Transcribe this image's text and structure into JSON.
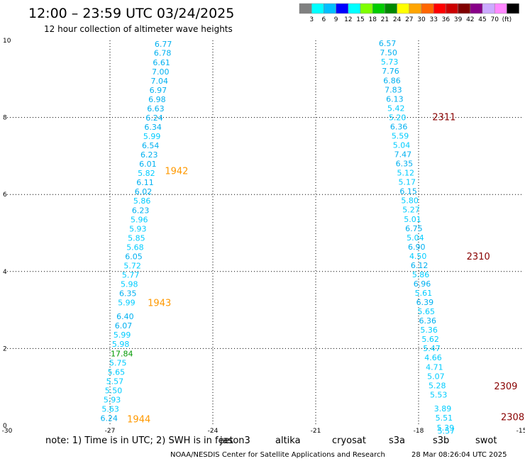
{
  "chart_data": {
    "type": "scatter",
    "title": "12:00 – 23:59 UTC 03/24/2025",
    "subtitle": "12 hour collection of altimeter wave heights",
    "xlim": [
      -30,
      -15
    ],
    "ylim": [
      0,
      10
    ],
    "x_ticks": [
      -30,
      -27,
      -24,
      -21,
      -18,
      -15
    ],
    "x_tick_labels": [
      "-30",
      "-27",
      "-24",
      "-21",
      "-18",
      "-15"
    ],
    "y_ticks": [
      0,
      2,
      4,
      6,
      8,
      10
    ],
    "y_tick_labels": [
      "0",
      "2",
      "4",
      "6",
      "8",
      "10"
    ],
    "grid": "dotted",
    "legend": {
      "placement": "top-right",
      "colors": [
        "#808080",
        "#00ffff",
        "#00bfff",
        "#0000ff",
        "#00ffff",
        "#7fff00",
        "#00cc00",
        "#008800",
        "#ffff00",
        "#ffa500",
        "#ff6600",
        "#ff0000",
        "#cc0000",
        "#800000",
        "#880088",
        "#ccaaff",
        "#ff88ff",
        "#000000"
      ],
      "labels": [
        "3",
        "6",
        "9",
        "12",
        "15",
        "18",
        "21",
        "24",
        "27",
        "30",
        "33",
        "36",
        "39",
        "42",
        "45",
        "70",
        "(ft)"
      ],
      "unit": "(ft)"
    },
    "series": [
      {
        "name": "track-left",
        "points": [
          {
            "x": -25.7,
            "y": 9.83,
            "v": "6.77"
          },
          {
            "x": -25.72,
            "y": 9.6,
            "v": "6.78"
          },
          {
            "x": -25.75,
            "y": 9.36,
            "v": "6.61"
          },
          {
            "x": -25.78,
            "y": 9.12,
            "v": "7.00"
          },
          {
            "x": -25.81,
            "y": 8.88,
            "v": "7.04"
          },
          {
            "x": -25.85,
            "y": 8.64,
            "v": "6.97"
          },
          {
            "x": -25.88,
            "y": 8.4,
            "v": "6.98"
          },
          {
            "x": -25.92,
            "y": 8.16,
            "v": "6.63"
          },
          {
            "x": -25.96,
            "y": 7.92,
            "v": "6.24"
          },
          {
            "x": -26.0,
            "y": 7.68,
            "v": "6.34"
          },
          {
            "x": -26.03,
            "y": 7.44,
            "v": "5.99"
          },
          {
            "x": -26.07,
            "y": 7.2,
            "v": "6.54"
          },
          {
            "x": -26.11,
            "y": 6.96,
            "v": "6.23"
          },
          {
            "x": -26.15,
            "y": 6.72,
            "v": "6.01"
          },
          {
            "x": -26.19,
            "y": 6.48,
            "v": "5.82"
          },
          {
            "x": -26.23,
            "y": 6.24,
            "v": "6.11"
          },
          {
            "x": -26.28,
            "y": 6.0,
            "v": "6.02"
          },
          {
            "x": -26.32,
            "y": 5.76,
            "v": "5.86"
          },
          {
            "x": -26.36,
            "y": 5.52,
            "v": "6.23"
          },
          {
            "x": -26.4,
            "y": 5.28,
            "v": "5.96"
          },
          {
            "x": -26.44,
            "y": 5.04,
            "v": "5.93"
          },
          {
            "x": -26.48,
            "y": 4.8,
            "v": "5.85"
          },
          {
            "x": -26.52,
            "y": 4.56,
            "v": "5.68"
          },
          {
            "x": -26.56,
            "y": 4.32,
            "v": "6.05"
          },
          {
            "x": -26.6,
            "y": 4.08,
            "v": "5.72"
          },
          {
            "x": -26.65,
            "y": 3.84,
            "v": "5.77"
          },
          {
            "x": -26.69,
            "y": 3.6,
            "v": "5.98"
          },
          {
            "x": -26.73,
            "y": 3.36,
            "v": "6.35"
          },
          {
            "x": -26.77,
            "y": 3.12,
            "v": "5.99"
          },
          {
            "x": -26.81,
            "y": 2.76,
            "v": "6.40"
          },
          {
            "x": -26.86,
            "y": 2.52,
            "v": "6.07"
          },
          {
            "x": -26.9,
            "y": 2.28,
            "v": "5.99"
          },
          {
            "x": -26.94,
            "y": 2.04,
            "v": "5.98"
          },
          {
            "x": -26.98,
            "y": 1.8,
            "v": "17.84"
          },
          {
            "x": -27.02,
            "y": 1.56,
            "v": "5.75"
          },
          {
            "x": -27.07,
            "y": 1.32,
            "v": "5.65"
          },
          {
            "x": -27.11,
            "y": 1.08,
            "v": "5.57"
          },
          {
            "x": -27.15,
            "y": 0.84,
            "v": "5.50"
          },
          {
            "x": -27.19,
            "y": 0.6,
            "v": "5.93"
          },
          {
            "x": -27.24,
            "y": 0.36,
            "v": "5.63"
          },
          {
            "x": -27.28,
            "y": 0.12,
            "v": "6.24"
          }
        ]
      },
      {
        "name": "track-right",
        "points": [
          {
            "x": -19.16,
            "y": 9.85,
            "v": "6.57"
          },
          {
            "x": -19.13,
            "y": 9.61,
            "v": "7.50"
          },
          {
            "x": -19.1,
            "y": 9.37,
            "v": "5.73"
          },
          {
            "x": -19.07,
            "y": 9.13,
            "v": "7.76"
          },
          {
            "x": -19.03,
            "y": 8.89,
            "v": "6.86"
          },
          {
            "x": -18.99,
            "y": 8.65,
            "v": "7.83"
          },
          {
            "x": -18.95,
            "y": 8.41,
            "v": "6.13"
          },
          {
            "x": -18.91,
            "y": 8.17,
            "v": "5.42"
          },
          {
            "x": -18.87,
            "y": 7.93,
            "v": "5.20"
          },
          {
            "x": -18.83,
            "y": 7.69,
            "v": "6.36"
          },
          {
            "x": -18.79,
            "y": 7.45,
            "v": "5.59"
          },
          {
            "x": -18.75,
            "y": 7.21,
            "v": "5.04"
          },
          {
            "x": -18.71,
            "y": 6.97,
            "v": "7.47"
          },
          {
            "x": -18.67,
            "y": 6.73,
            "v": "6.35"
          },
          {
            "x": -18.63,
            "y": 6.49,
            "v": "5.12"
          },
          {
            "x": -18.59,
            "y": 6.25,
            "v": "5.17"
          },
          {
            "x": -18.55,
            "y": 6.01,
            "v": "6.15"
          },
          {
            "x": -18.51,
            "y": 5.77,
            "v": "5.80"
          },
          {
            "x": -18.47,
            "y": 5.53,
            "v": "5.27"
          },
          {
            "x": -18.43,
            "y": 5.29,
            "v": "5.01"
          },
          {
            "x": -18.39,
            "y": 5.05,
            "v": "6.75"
          },
          {
            "x": -18.35,
            "y": 4.81,
            "v": "5.04"
          },
          {
            "x": -18.31,
            "y": 4.57,
            "v": "6.90"
          },
          {
            "x": -18.27,
            "y": 4.33,
            "v": "4.50"
          },
          {
            "x": -18.23,
            "y": 4.09,
            "v": "6.12"
          },
          {
            "x": -18.19,
            "y": 3.85,
            "v": "5.86"
          },
          {
            "x": -18.15,
            "y": 3.61,
            "v": "6.96"
          },
          {
            "x": -18.11,
            "y": 3.37,
            "v": "5.61"
          },
          {
            "x": -18.07,
            "y": 3.13,
            "v": "6.39"
          },
          {
            "x": -18.03,
            "y": 2.89,
            "v": "5.65"
          },
          {
            "x": -17.99,
            "y": 2.65,
            "v": "6.36"
          },
          {
            "x": -17.95,
            "y": 2.41,
            "v": "5.36"
          },
          {
            "x": -17.91,
            "y": 2.17,
            "v": "5.62"
          },
          {
            "x": -17.87,
            "y": 1.93,
            "v": "5.47"
          },
          {
            "x": -17.83,
            "y": 1.69,
            "v": "4.66"
          },
          {
            "x": -17.79,
            "y": 1.45,
            "v": "4.71"
          },
          {
            "x": -17.75,
            "y": 1.21,
            "v": "5.07"
          },
          {
            "x": -17.71,
            "y": 0.97,
            "v": "5.28"
          },
          {
            "x": -17.67,
            "y": 0.73,
            "v": "5.53"
          },
          {
            "x": -17.55,
            "y": 0.37,
            "v": "3.89"
          },
          {
            "x": -17.51,
            "y": 0.13,
            "v": "5.51"
          },
          {
            "x": -17.47,
            "y": -0.13,
            "v": "5.39"
          },
          {
            "x": -17.45,
            "y": -0.21,
            "v": "5.57"
          }
        ]
      }
    ],
    "pass_labels": [
      {
        "text": "1942",
        "x": -25.4,
        "y": 6.53,
        "color": "#ff9900"
      },
      {
        "text": "1943",
        "x": -25.9,
        "y": 3.1,
        "color": "#ff9900"
      },
      {
        "text": "1944",
        "x": -26.5,
        "y": 0.08,
        "color": "#ff9900"
      },
      {
        "text": "2311",
        "x": -17.6,
        "y": 7.93,
        "color": "#880000"
      },
      {
        "text": "2310",
        "x": -16.6,
        "y": 4.31,
        "color": "#880000"
      },
      {
        "text": "2309",
        "x": -15.8,
        "y": 0.94,
        "color": "#880000"
      },
      {
        "text": "2308",
        "x": -15.6,
        "y": 0.14,
        "color": "#880000"
      }
    ]
  },
  "note": "note: 1) Time is in UTC; 2) SWH is in feet",
  "satellites": [
    {
      "name": "jason3",
      "color": "#008000"
    },
    {
      "name": "altika",
      "color": "#ff9900"
    },
    {
      "name": "cryosat",
      "color": "#ff0000"
    },
    {
      "name": "s3a",
      "color": "#880000"
    },
    {
      "name": "s3b",
      "color": "#ccaaff"
    },
    {
      "name": "swot",
      "color": "#ff88ff"
    }
  ],
  "credit": "NOAA/NESDIS Center for Satellite Applications and Research",
  "timestamp": "28 Mar 08:26:04 UTC 2025"
}
